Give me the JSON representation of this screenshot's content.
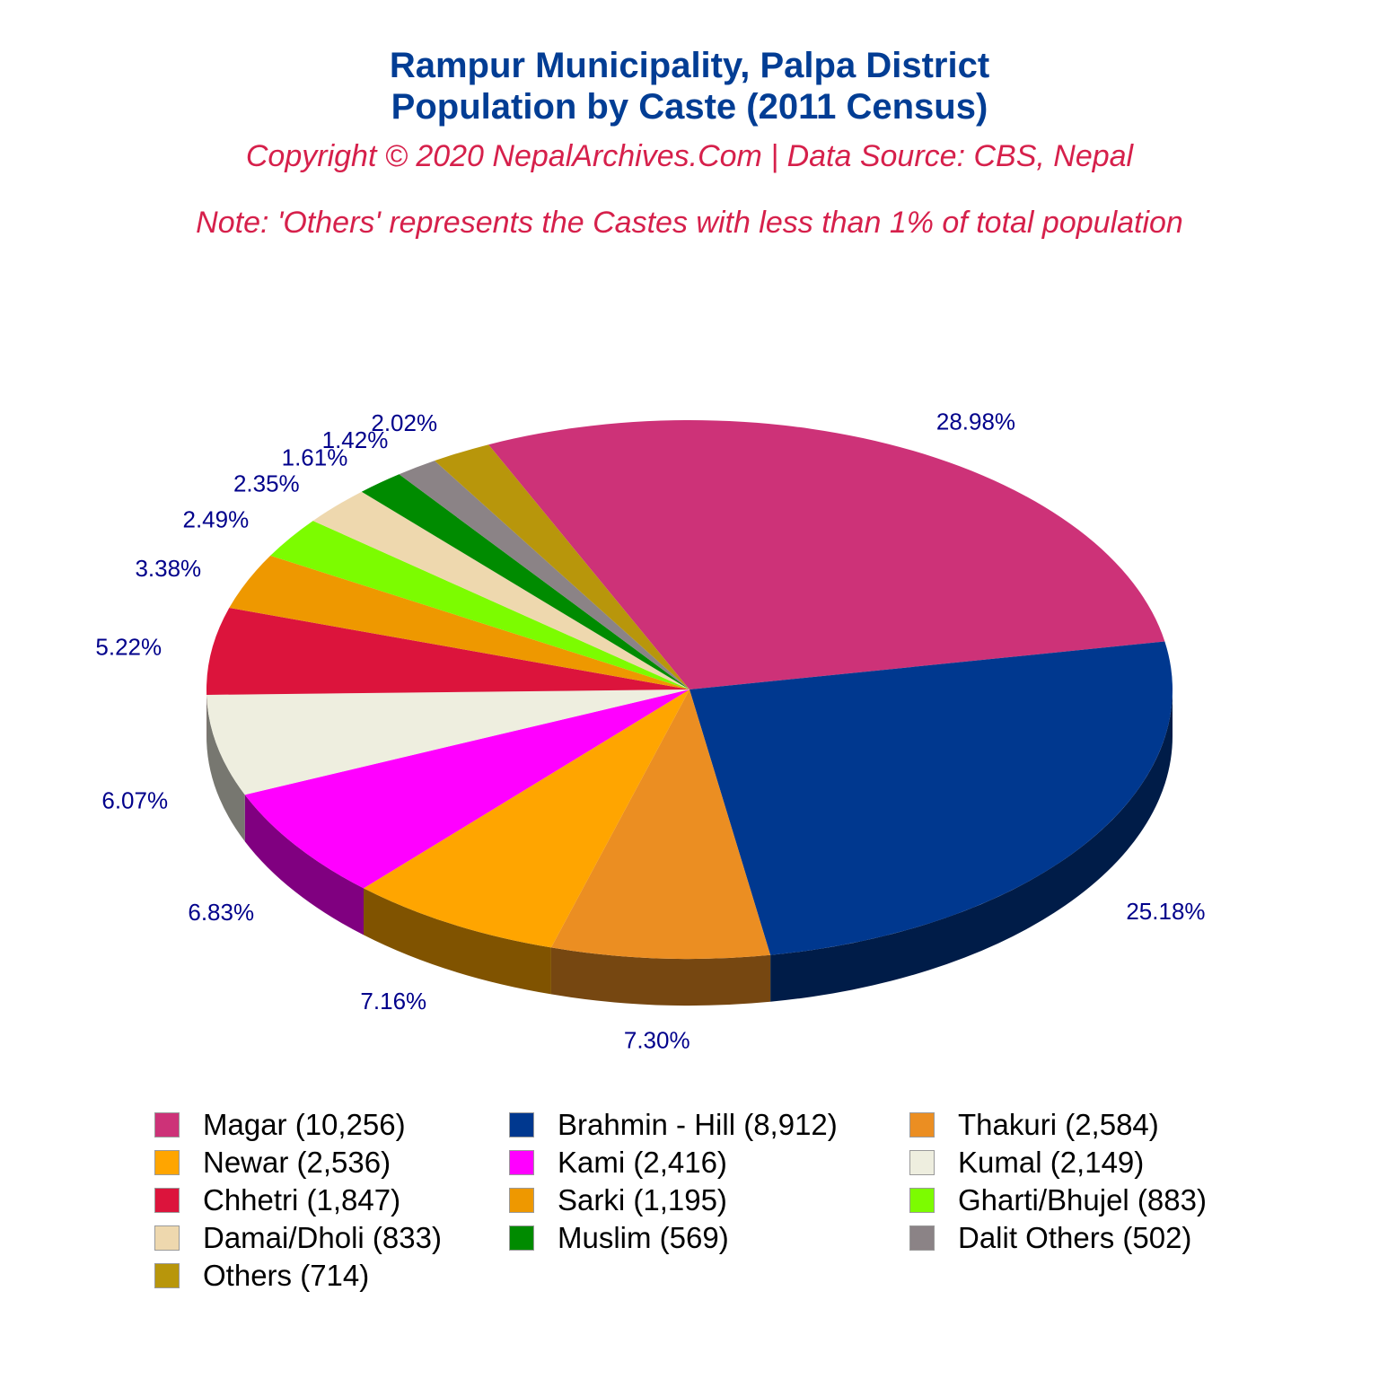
{
  "title_line1": "Rampur Municipality, Palpa District",
  "title_line2": "Population by Caste (2011 Census)",
  "copyright": "Copyright © 2020 NepalArchives.Com | Data Source: CBS, Nepal",
  "note": "Note: 'Others' represents the Castes with less than 1% of total population",
  "colors": {
    "title": "#023d94",
    "note": "#d6204b",
    "pct_label": "#00008b"
  },
  "chart_data": {
    "type": "pie",
    "style": "3d",
    "categories": [
      "Magar",
      "Brahmin - Hill",
      "Thakuri",
      "Newar",
      "Kami",
      "Kumal",
      "Chhetri",
      "Sarki",
      "Gharti/Bhujel",
      "Damai/Dholi",
      "Muslim",
      "Dalit Others",
      "Others"
    ],
    "values": [
      10256,
      8912,
      2584,
      2536,
      2416,
      2149,
      1847,
      1195,
      883,
      833,
      569,
      502,
      714
    ],
    "percent_labels": [
      "28.98%",
      "25.18%",
      "7.30%",
      "7.16%",
      "6.83%",
      "6.07%",
      "5.22%",
      "3.38%",
      "2.49%",
      "2.35%",
      "1.61%",
      "1.42%",
      "2.02%"
    ],
    "legend_labels": [
      "Magar (10,256)",
      "Brahmin - Hill (8,912)",
      "Thakuri (2,584)",
      "Newar (2,536)",
      "Kami (2,416)",
      "Kumal (2,149)",
      "Chhetri (1,847)",
      "Sarki (1,195)",
      "Gharti/Bhujel (883)",
      "Damai/Dholi (833)",
      "Muslim (569)",
      "Dalit Others (502)",
      "Others (714)"
    ],
    "colors": [
      "#cd3278",
      "#00388f",
      "#eb8e22",
      "#ffa500",
      "#ff00ff",
      "#eeeedf",
      "#dc143c",
      "#ee9800",
      "#7cfc00",
      "#eed8ae",
      "#008b00",
      "#8b8386",
      "#b8960b"
    ],
    "legend_position": "bottom"
  }
}
